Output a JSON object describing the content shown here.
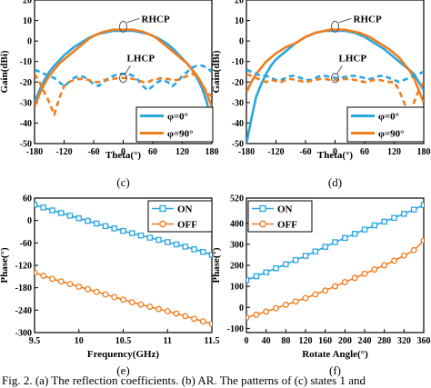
{
  "colors": {
    "blue": "#2aa6e0",
    "orange": "#f07d1e",
    "axis": "#000000"
  },
  "caption": "Fig. 2. (a) The reflection coefficients. (b) AR. The patterns of (c) states 1 and",
  "chart_data": [
    {
      "type": "line",
      "panel_label": "(c)",
      "xlabel": "Theta(°)",
      "ylabel": "Gain(dBi)",
      "xlim": [
        -180,
        180
      ],
      "ylim": [
        -50,
        20
      ],
      "xticks": [
        -180,
        -120,
        -60,
        0,
        60,
        120,
        180
      ],
      "yticks": [
        20,
        10,
        0,
        -10,
        -20,
        -30,
        -40,
        -50
      ],
      "legend": {
        "placement": "bottom-right"
      },
      "annotations": [
        "RHCP",
        "LHCP"
      ],
      "series": [
        {
          "name": "φ=0°",
          "role": "RHCP",
          "color": "#2aa6e0",
          "dashed": false,
          "x": [
            -180,
            -170,
            -160,
            -150,
            -140,
            -130,
            -120,
            -110,
            -100,
            -90,
            -80,
            -70,
            -60,
            -50,
            -40,
            -30,
            -20,
            -10,
            0,
            10,
            20,
            30,
            40,
            50,
            60,
            70,
            80,
            90,
            100,
            110,
            120,
            130,
            140,
            150,
            160,
            170,
            180
          ],
          "y": [
            -30,
            -24,
            -19,
            -15,
            -12,
            -9.5,
            -7,
            -5,
            -3,
            -1.5,
            0,
            1.5,
            2.5,
            3.5,
            4,
            4.5,
            5,
            5,
            5,
            5,
            5,
            4.5,
            4,
            3.5,
            2.5,
            1.5,
            0,
            -1.5,
            -3.5,
            -6,
            -8.5,
            -11,
            -14,
            -18,
            -23,
            -30,
            -40
          ]
        },
        {
          "name": "φ=90°",
          "role": "RHCP",
          "color": "#f07d1e",
          "dashed": false,
          "x": [
            -180,
            -170,
            -160,
            -150,
            -140,
            -130,
            -120,
            -110,
            -100,
            -90,
            -80,
            -70,
            -60,
            -50,
            -40,
            -30,
            -20,
            -10,
            0,
            10,
            20,
            30,
            40,
            50,
            60,
            70,
            80,
            90,
            100,
            110,
            120,
            130,
            140,
            150,
            160,
            170,
            180
          ],
          "y": [
            -32,
            -26,
            -21,
            -17,
            -14,
            -11,
            -9,
            -7,
            -5,
            -3,
            -1,
            1,
            2.5,
            3.5,
            4.5,
            5,
            5.5,
            5.5,
            5.5,
            5.5,
            5.5,
            5,
            4.5,
            3.5,
            2.5,
            1,
            -1,
            -3,
            -5,
            -7,
            -9,
            -11,
            -14,
            -17,
            -21,
            -26,
            -32
          ]
        },
        {
          "name": "φ=0°",
          "role": "LHCP",
          "color": "#2aa6e0",
          "dashed": true,
          "x": [
            -180,
            -170,
            -160,
            -150,
            -140,
            -130,
            -120,
            -110,
            -100,
            -90,
            -80,
            -70,
            -60,
            -50,
            -40,
            -30,
            -20,
            -10,
            0,
            10,
            20,
            30,
            40,
            50,
            60,
            70,
            80,
            90,
            100,
            110,
            120,
            130,
            140,
            150,
            160,
            170,
            180
          ],
          "y": [
            -14,
            -15,
            -16,
            -17,
            -18,
            -20,
            -22,
            -20,
            -18,
            -17,
            -17.5,
            -19,
            -21,
            -22,
            -20,
            -18,
            -17,
            -16,
            -16,
            -16,
            -17,
            -19,
            -22,
            -24,
            -22,
            -20,
            -19,
            -20,
            -22,
            -20,
            -17,
            -15,
            -13,
            -12,
            -12,
            -13,
            -15
          ]
        },
        {
          "name": "φ=90°",
          "role": "LHCP",
          "color": "#f07d1e",
          "dashed": true,
          "x": [
            -180,
            -170,
            -160,
            -150,
            -140,
            -130,
            -120,
            -110,
            -100,
            -90,
            -80,
            -70,
            -60,
            -50,
            -40,
            -30,
            -20,
            -10,
            0,
            10,
            20,
            30,
            40,
            50,
            60,
            70,
            80,
            90,
            100,
            110,
            120,
            130,
            140,
            150,
            160,
            170,
            180
          ],
          "y": [
            -16,
            -20,
            -25,
            -30,
            -36,
            -28,
            -22,
            -20,
            -19,
            -18.5,
            -18.5,
            -19,
            -20,
            -20,
            -19,
            -19,
            -18.5,
            -18,
            -18,
            -18,
            -18.5,
            -19,
            -20,
            -20,
            -19,
            -18.5,
            -18,
            -18.5,
            -19,
            -19,
            -18,
            -17,
            -16,
            -17,
            -21,
            -25,
            -27
          ]
        }
      ]
    },
    {
      "type": "line",
      "panel_label": "(d)",
      "xlabel": "Theta(°)",
      "ylabel": "Gain(dBi)",
      "xlim": [
        -180,
        180
      ],
      "ylim": [
        -50,
        20
      ],
      "xticks": [
        -180,
        -120,
        -60,
        0,
        60,
        120,
        180
      ],
      "yticks": [
        20,
        10,
        0,
        -10,
        -20,
        -30,
        -40,
        -50
      ],
      "legend": {
        "placement": "bottom-right"
      },
      "annotations": [
        "RHCP",
        "LHCP"
      ],
      "series": [
        {
          "name": "φ=0°",
          "role": "RHCP",
          "color": "#2aa6e0",
          "dashed": false,
          "x": [
            -180,
            -175,
            -170,
            -160,
            -150,
            -140,
            -130,
            -120,
            -110,
            -100,
            -90,
            -80,
            -70,
            -60,
            -50,
            -40,
            -30,
            -20,
            -10,
            0,
            10,
            20,
            30,
            40,
            50,
            60,
            70,
            80,
            90,
            100,
            110,
            120,
            130,
            140,
            150,
            160,
            170,
            180
          ],
          "y": [
            -50,
            -44,
            -38,
            -27,
            -21,
            -16,
            -12,
            -9,
            -7,
            -5,
            -3,
            -1,
            0.5,
            2,
            3,
            4,
            4.5,
            5,
            5,
            5,
            5,
            5,
            4.5,
            4,
            3,
            2,
            0.5,
            -1,
            -2.5,
            -4,
            -6,
            -8,
            -10,
            -12,
            -14,
            -16,
            -20,
            -24
          ]
        },
        {
          "name": "φ=90°",
          "role": "RHCP",
          "color": "#f07d1e",
          "dashed": false,
          "x": [
            -180,
            -170,
            -160,
            -150,
            -140,
            -130,
            -120,
            -110,
            -100,
            -90,
            -80,
            -70,
            -60,
            -50,
            -40,
            -30,
            -20,
            -10,
            0,
            10,
            20,
            30,
            40,
            50,
            60,
            70,
            80,
            90,
            100,
            110,
            120,
            130,
            140,
            150,
            160,
            170,
            180
          ],
          "y": [
            -25,
            -20,
            -16,
            -13,
            -10,
            -8,
            -6,
            -4.5,
            -3,
            -2,
            -1,
            0.5,
            2,
            3,
            4,
            4.5,
            5,
            5.5,
            5.5,
            5.5,
            5.5,
            5,
            4.5,
            4,
            3,
            2,
            0.5,
            -1,
            -2.5,
            -4,
            -6,
            -8,
            -11,
            -14,
            -18,
            -24,
            -30
          ]
        },
        {
          "name": "φ=0°",
          "role": "LHCP",
          "color": "#2aa6e0",
          "dashed": true,
          "x": [
            -180,
            -170,
            -160,
            -150,
            -140,
            -130,
            -120,
            -110,
            -100,
            -90,
            -80,
            -70,
            -60,
            -50,
            -40,
            -30,
            -20,
            -10,
            0,
            10,
            20,
            30,
            40,
            50,
            60,
            70,
            80,
            90,
            100,
            110,
            120,
            130,
            140,
            150,
            160,
            170,
            180
          ],
          "y": [
            -14,
            -15,
            -16,
            -17,
            -17,
            -18,
            -19,
            -19,
            -18,
            -17,
            -17,
            -18,
            -19,
            -19,
            -18,
            -17,
            -17,
            -17.5,
            -18,
            -18,
            -17.5,
            -17,
            -17,
            -17.5,
            -18,
            -18.5,
            -18,
            -17,
            -17,
            -18,
            -19,
            -20,
            -19,
            -18,
            -17,
            -16,
            -15
          ]
        },
        {
          "name": "φ=90°",
          "role": "LHCP",
          "color": "#f07d1e",
          "dashed": true,
          "x": [
            -180,
            -170,
            -160,
            -150,
            -140,
            -130,
            -120,
            -110,
            -100,
            -90,
            -80,
            -70,
            -60,
            -50,
            -40,
            -30,
            -20,
            -10,
            0,
            10,
            20,
            30,
            40,
            50,
            60,
            70,
            80,
            90,
            100,
            110,
            120,
            130,
            140,
            150,
            160,
            170,
            180
          ],
          "y": [
            -16,
            -17,
            -18,
            -19,
            -20,
            -19,
            -19.5,
            -20,
            -19,
            -18.5,
            -19,
            -19.5,
            -20,
            -19.5,
            -19,
            -18.5,
            -18.5,
            -19,
            -19,
            -19,
            -18.5,
            -18.5,
            -19,
            -19.5,
            -20,
            -19.5,
            -19,
            -19,
            -19.5,
            -20,
            -20,
            -24,
            -30,
            -36,
            -30,
            -24,
            -20
          ]
        }
      ]
    },
    {
      "type": "line",
      "panel_label": "(e)",
      "xlabel": "Frequency(GHz)",
      "ylabel": "Phase(°)",
      "xlim": [
        9.5,
        11.5
      ],
      "ylim": [
        -300,
        60
      ],
      "xticks": [
        9.5,
        10.0,
        10.5,
        11.0,
        11.5
      ],
      "yticks": [
        60,
        0,
        -60,
        -120,
        -180,
        -240,
        -300
      ],
      "legend": {
        "placement": "top-right"
      },
      "series": [
        {
          "name": "ON",
          "color": "#2aa6e0",
          "marker": "square",
          "x": [
            9.5,
            9.6,
            9.7,
            9.8,
            9.9,
            10.0,
            10.1,
            10.2,
            10.3,
            10.4,
            10.5,
            10.6,
            10.7,
            10.8,
            10.9,
            11.0,
            11.1,
            11.2,
            11.3,
            11.4,
            11.5
          ],
          "y": [
            42,
            35,
            27,
            20,
            13,
            6,
            -1,
            -8,
            -15,
            -21,
            -28,
            -34,
            -40,
            -46,
            -52,
            -58,
            -64,
            -70,
            -77,
            -84,
            -92
          ]
        },
        {
          "name": "OFF",
          "color": "#f07d1e",
          "marker": "circle",
          "x": [
            9.5,
            9.6,
            9.7,
            9.8,
            9.9,
            10.0,
            10.1,
            10.2,
            10.3,
            10.4,
            10.5,
            10.6,
            10.7,
            10.8,
            10.9,
            11.0,
            11.1,
            11.2,
            11.3,
            11.4,
            11.5
          ],
          "y": [
            -140,
            -148,
            -156,
            -163,
            -170,
            -177,
            -184,
            -191,
            -198,
            -205,
            -212,
            -219,
            -225,
            -231,
            -237,
            -243,
            -249,
            -256,
            -263,
            -270,
            -277
          ]
        }
      ]
    },
    {
      "type": "line",
      "panel_label": "(f)",
      "xlabel": "Rotate Angle(°)",
      "ylabel": "Phase(°)",
      "xlim": [
        0,
        360
      ],
      "ylim": [
        -120,
        520
      ],
      "xticks": [
        0,
        40,
        80,
        120,
        160,
        200,
        240,
        280,
        320,
        360
      ],
      "yticks": [
        520,
        400,
        300,
        200,
        100,
        0,
        -100
      ],
      "legend": {
        "placement": "top-left"
      },
      "series": [
        {
          "name": "ON",
          "color": "#2aa6e0",
          "marker": "square",
          "x": [
            0,
            20,
            40,
            60,
            80,
            100,
            120,
            140,
            160,
            180,
            200,
            220,
            240,
            260,
            280,
            300,
            320,
            340,
            360
          ],
          "y": [
            130,
            148,
            167,
            186,
            205,
            225,
            245,
            266,
            288,
            310,
            330,
            350,
            370,
            390,
            408,
            426,
            445,
            465,
            487
          ]
        },
        {
          "name": "OFF",
          "color": "#f07d1e",
          "marker": "circle",
          "x": [
            0,
            20,
            40,
            60,
            80,
            100,
            120,
            140,
            160,
            180,
            200,
            220,
            240,
            260,
            280,
            300,
            320,
            340,
            360
          ],
          "y": [
            -48,
            -35,
            -20,
            -4,
            12,
            28,
            44,
            62,
            80,
            100,
            120,
            140,
            160,
            180,
            200,
            222,
            246,
            272,
            318
          ]
        }
      ]
    }
  ]
}
